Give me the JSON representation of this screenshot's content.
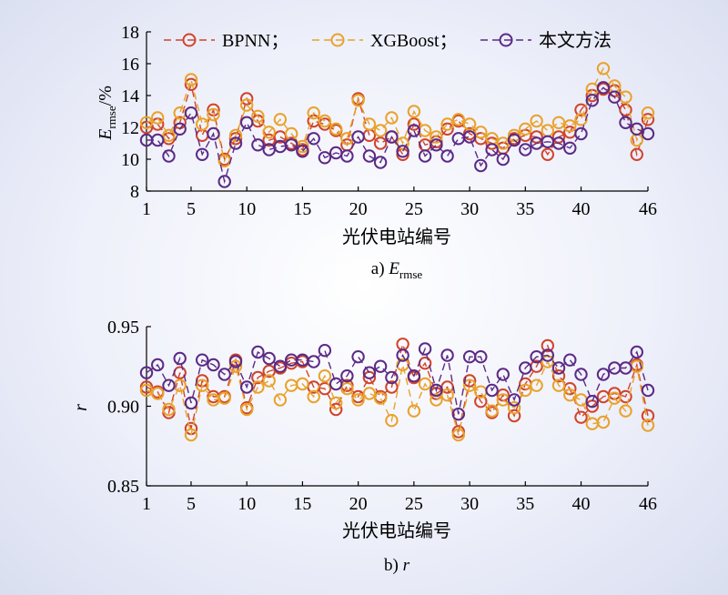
{
  "figure": {
    "legend": [
      {
        "name": "BPNN；",
        "color": "#d0442a",
        "dash": "8,5"
      },
      {
        "name": "XGBoost；",
        "color": "#e9a22b",
        "dash": "8,5"
      },
      {
        "name": "本文方法",
        "color": "#5b2a86",
        "dash": "8,5"
      }
    ]
  },
  "chart_data": [
    {
      "type": "line",
      "panel": "a",
      "caption_prefix": "a)",
      "caption_var": "E",
      "caption_sub": "rmse",
      "xlabel": "光伏电站编号",
      "ylabel_var": "E",
      "ylabel_sub": "rmse",
      "ylabel_unit": "/%",
      "ylim": [
        8,
        18
      ],
      "yticks": [
        8,
        10,
        12,
        14,
        16,
        18
      ],
      "yticklabels": [
        "8",
        "10",
        "12",
        "14",
        "16",
        "18"
      ],
      "xlim": [
        1,
        46
      ],
      "xticks": [
        1,
        5,
        10,
        15,
        20,
        25,
        30,
        35,
        40,
        46
      ],
      "xticklabels": [
        "1",
        "5",
        "10",
        "15",
        "20",
        "25",
        "30",
        "35",
        "40",
        "46"
      ],
      "x": [
        1,
        2,
        3,
        4,
        5,
        6,
        7,
        8,
        9,
        10,
        11,
        12,
        13,
        14,
        15,
        16,
        17,
        18,
        19,
        20,
        21,
        22,
        23,
        24,
        25,
        26,
        27,
        28,
        29,
        30,
        31,
        32,
        33,
        34,
        35,
        36,
        37,
        38,
        39,
        40,
        41,
        42,
        43,
        44,
        45,
        46
      ],
      "series": [
        {
          "name": "BPNN",
          "values": [
            12.0,
            12.2,
            11.3,
            12.3,
            14.7,
            11.5,
            13.1,
            10.0,
            11.3,
            13.8,
            12.4,
            11.2,
            11.4,
            11.0,
            10.6,
            12.4,
            12.2,
            11.8,
            10.9,
            13.8,
            11.5,
            11.0,
            11.4,
            10.3,
            12.2,
            10.9,
            11.1,
            11.9,
            12.4,
            11.6,
            11.3,
            11.0,
            10.7,
            11.3,
            11.5,
            11.4,
            10.3,
            11.4,
            11.7,
            13.1,
            14.0,
            14.4,
            14.3,
            13.1,
            10.3,
            12.5
          ]
        },
        {
          "name": "XGBoost",
          "values": [
            12.3,
            12.6,
            11.5,
            12.9,
            15.0,
            12.2,
            12.8,
            9.9,
            11.5,
            13.4,
            12.7,
            11.7,
            12.5,
            11.6,
            10.8,
            12.9,
            12.4,
            11.9,
            11.3,
            13.7,
            12.2,
            11.8,
            12.6,
            11.0,
            13.0,
            11.8,
            11.4,
            12.2,
            12.5,
            12.2,
            11.7,
            11.3,
            11.0,
            11.5,
            11.9,
            12.4,
            11.8,
            12.3,
            12.1,
            12.5,
            14.4,
            15.7,
            14.6,
            13.9,
            11.2,
            12.9
          ]
        },
        {
          "name": "本文方法",
          "values": [
            11.2,
            11.2,
            10.2,
            11.9,
            12.9,
            10.3,
            11.6,
            8.6,
            11.0,
            12.3,
            10.9,
            10.6,
            10.8,
            10.9,
            10.5,
            11.3,
            10.1,
            10.4,
            10.2,
            11.4,
            10.2,
            9.8,
            11.4,
            10.5,
            11.8,
            10.2,
            10.9,
            10.2,
            11.3,
            11.4,
            9.6,
            10.6,
            10.0,
            11.2,
            10.6,
            11.0,
            11.1,
            11.0,
            10.7,
            11.6,
            13.7,
            14.5,
            13.9,
            12.3,
            11.9,
            11.6
          ]
        }
      ]
    },
    {
      "type": "line",
      "panel": "b",
      "caption_prefix": "b)",
      "caption_var": "r",
      "xlabel": "光伏电站编号",
      "ylabel_var": "r",
      "ylim": [
        0.85,
        0.95
      ],
      "yticks": [
        0.85,
        0.9,
        0.95
      ],
      "yticklabels": [
        "0.85",
        "0.90",
        "0.95"
      ],
      "xlim": [
        1,
        46
      ],
      "xticks": [
        1,
        5,
        10,
        15,
        20,
        25,
        30,
        35,
        40,
        46
      ],
      "xticklabels": [
        "1",
        "5",
        "10",
        "15",
        "20",
        "25",
        "30",
        "35",
        "40",
        "46"
      ],
      "x": [
        1,
        2,
        3,
        4,
        5,
        6,
        7,
        8,
        9,
        10,
        11,
        12,
        13,
        14,
        15,
        16,
        17,
        18,
        19,
        20,
        21,
        22,
        23,
        24,
        25,
        26,
        27,
        28,
        29,
        30,
        31,
        32,
        33,
        34,
        35,
        36,
        37,
        38,
        39,
        40,
        41,
        42,
        43,
        44,
        45,
        46
      ],
      "series": [
        {
          "name": "BPNN",
          "values": [
            0.912,
            0.909,
            0.896,
            0.921,
            0.886,
            0.916,
            0.906,
            0.906,
            0.929,
            0.899,
            0.918,
            0.922,
            0.924,
            0.927,
            0.928,
            0.912,
            0.911,
            0.898,
            0.913,
            0.906,
            0.918,
            0.906,
            0.912,
            0.939,
            0.918,
            0.927,
            0.908,
            0.912,
            0.884,
            0.916,
            0.903,
            0.896,
            0.907,
            0.894,
            0.914,
            0.925,
            0.938,
            0.919,
            0.911,
            0.893,
            0.9,
            0.906,
            0.908,
            0.906,
            0.926,
            0.894
          ]
        },
        {
          "name": "XGBoost",
          "values": [
            0.91,
            0.908,
            0.898,
            0.913,
            0.882,
            0.913,
            0.904,
            0.905,
            0.925,
            0.898,
            0.912,
            0.916,
            0.904,
            0.913,
            0.914,
            0.906,
            0.919,
            0.902,
            0.911,
            0.904,
            0.908,
            0.905,
            0.891,
            0.926,
            0.897,
            0.914,
            0.904,
            0.907,
            0.882,
            0.913,
            0.909,
            0.897,
            0.904,
            0.899,
            0.91,
            0.913,
            0.928,
            0.913,
            0.907,
            0.904,
            0.889,
            0.89,
            0.905,
            0.897,
            0.925,
            0.888
          ]
        },
        {
          "name": "本文方法",
          "values": [
            0.921,
            0.926,
            0.913,
            0.93,
            0.902,
            0.929,
            0.926,
            0.92,
            0.928,
            0.912,
            0.934,
            0.93,
            0.925,
            0.929,
            0.929,
            0.928,
            0.935,
            0.914,
            0.919,
            0.931,
            0.921,
            0.925,
            0.918,
            0.932,
            0.919,
            0.936,
            0.91,
            0.932,
            0.895,
            0.931,
            0.931,
            0.91,
            0.92,
            0.904,
            0.924,
            0.931,
            0.932,
            0.924,
            0.929,
            0.92,
            0.903,
            0.92,
            0.924,
            0.924,
            0.934,
            0.91
          ]
        }
      ]
    }
  ]
}
